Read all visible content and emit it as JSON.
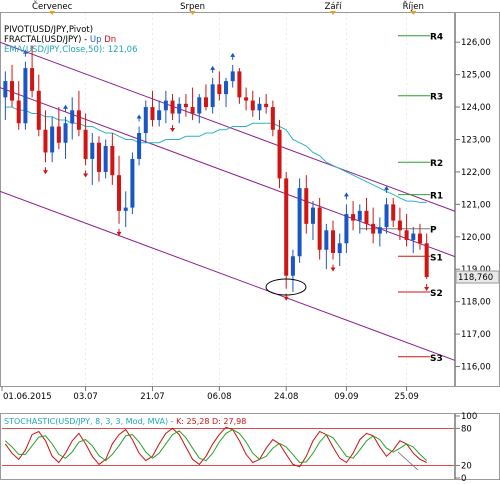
{
  "top_axis": {
    "months": [
      "Červenec",
      "Srpen",
      "Září",
      "Říjen"
    ]
  },
  "legend": [
    {
      "prefix": "PIVOT(USD/JPY,Pivot)",
      "suffix": "",
      "color": "#000000"
    },
    {
      "prefix": "FRACTAL(USD/JPY) - ",
      "suffix": "Up",
      "extra": "Dn",
      "color": "#000000",
      "up_color": "#1f5fc8",
      "dn_color": "#d01010"
    },
    {
      "prefix": "EMA(USD/JPY,Close,50): 121,06",
      "suffix": "",
      "color": "#20a8b8"
    }
  ],
  "colors": {
    "up_candle": "#1a56c4",
    "down_candle": "#d11414",
    "ema": "#2cb4c4",
    "channel": "#8e1f8e",
    "pivot_line": "#2e9e2e",
    "support_line": "#d01010",
    "stoch_k": "#d01010",
    "stoch_d": "#2aa02a",
    "stoch_band": "#d01010",
    "price_tag_bg": "#e8e8e8"
  },
  "chart_data": [
    {
      "type": "candlestick",
      "title": "USD/JPY",
      "ylim": [
        115.4,
        126.9
      ],
      "yticks": [
        "126,00",
        "125,00",
        "124,00",
        "123,00",
        "122,00",
        "121,00",
        "120,00",
        "119,00",
        "118,00",
        "117,00",
        "116,00"
      ],
      "ytick_values": [
        126,
        125,
        124,
        123,
        122,
        121,
        120,
        119,
        118,
        117,
        116
      ],
      "xticks": [
        "01.06.2015",
        "03.07",
        "21.07",
        "06.08",
        "24.08",
        "09.09",
        "25.09"
      ],
      "last_price_label": "118,760",
      "last_price": 118.76,
      "pivot_levels": [
        {
          "label": "R4",
          "value": 126.2
        },
        {
          "label": "R3",
          "value": 124.35
        },
        {
          "label": "R2",
          "value": 122.3
        },
        {
          "label": "R1",
          "value": 121.3
        },
        {
          "label": "P",
          "value": 120.25
        },
        {
          "label": "S1",
          "value": 119.4
        },
        {
          "label": "S2",
          "value": 118.3
        },
        {
          "label": "S3",
          "value": 116.3
        }
      ],
      "candles": [
        [
          124.3,
          125.1,
          123.6,
          124.8
        ],
        [
          124.8,
          125.3,
          124.0,
          124.2
        ],
        [
          124.2,
          124.8,
          123.3,
          123.5
        ],
        [
          123.5,
          125.4,
          123.3,
          125.2
        ],
        [
          125.2,
          125.9,
          124.3,
          124.5
        ],
        [
          124.5,
          125.0,
          123.1,
          123.3
        ],
        [
          123.3,
          123.9,
          122.3,
          122.6
        ],
        [
          122.6,
          123.7,
          122.3,
          123.4
        ],
        [
          123.4,
          124.0,
          122.7,
          122.9
        ],
        [
          122.9,
          123.7,
          122.4,
          123.5
        ],
        [
          123.5,
          124.3,
          123.0,
          123.9
        ],
        [
          123.9,
          124.5,
          123.1,
          123.3
        ],
        [
          123.3,
          123.8,
          122.2,
          122.4
        ],
        [
          122.4,
          123.2,
          121.6,
          122.9
        ],
        [
          122.9,
          123.1,
          121.7,
          122.0
        ],
        [
          122.0,
          123.0,
          121.8,
          122.8
        ],
        [
          122.8,
          123.2,
          121.6,
          121.9
        ],
        [
          121.9,
          122.5,
          120.4,
          120.8
        ],
        [
          120.8,
          121.4,
          120.3,
          120.9
        ],
        [
          120.9,
          122.6,
          120.7,
          122.4
        ],
        [
          122.4,
          123.4,
          122.2,
          123.2
        ],
        [
          123.2,
          124.2,
          122.9,
          124.0
        ],
        [
          124.0,
          124.5,
          123.4,
          123.6
        ],
        [
          123.6,
          124.2,
          123.4,
          123.9
        ],
        [
          123.9,
          124.5,
          123.5,
          124.2
        ],
        [
          124.2,
          124.4,
          123.6,
          123.8
        ],
        [
          123.8,
          124.3,
          123.5,
          124.1
        ],
        [
          124.1,
          124.4,
          123.7,
          124.0
        ],
        [
          124.0,
          124.6,
          123.6,
          123.8
        ],
        [
          123.8,
          124.4,
          123.5,
          124.3
        ],
        [
          124.3,
          124.7,
          123.9,
          124.0
        ],
        [
          124.0,
          124.9,
          123.8,
          124.7
        ],
        [
          124.7,
          125.1,
          124.2,
          124.4
        ],
        [
          124.4,
          124.9,
          124.0,
          124.8
        ],
        [
          124.8,
          125.3,
          124.6,
          125.1
        ],
        [
          125.1,
          125.2,
          124.1,
          124.3
        ],
        [
          124.3,
          124.6,
          123.9,
          124.2
        ],
        [
          124.2,
          124.5,
          123.7,
          123.9
        ],
        [
          123.9,
          124.3,
          123.6,
          124.1
        ],
        [
          124.1,
          124.4,
          123.8,
          124.0
        ],
        [
          124.0,
          124.2,
          123.1,
          123.3
        ],
        [
          123.3,
          123.6,
          121.5,
          121.8
        ],
        [
          121.8,
          122.0,
          118.4,
          118.8
        ],
        [
          118.8,
          119.6,
          118.3,
          119.4
        ],
        [
          119.4,
          121.8,
          119.2,
          121.5
        ],
        [
          121.5,
          121.9,
          120.1,
          120.4
        ],
        [
          120.4,
          121.1,
          119.9,
          120.9
        ],
        [
          120.9,
          121.2,
          119.3,
          119.6
        ],
        [
          119.6,
          120.4,
          119.0,
          120.2
        ],
        [
          120.2,
          120.5,
          119.3,
          119.5
        ],
        [
          119.5,
          120.1,
          119.1,
          119.8
        ],
        [
          119.8,
          121.0,
          119.5,
          120.7
        ],
        [
          120.7,
          121.1,
          120.2,
          120.5
        ],
        [
          120.5,
          121.0,
          120.1,
          120.8
        ],
        [
          120.8,
          121.2,
          120.2,
          120.4
        ],
        [
          120.4,
          120.9,
          119.8,
          120.1
        ],
        [
          120.1,
          120.6,
          119.7,
          120.3
        ],
        [
          120.3,
          121.2,
          120.1,
          121.0
        ],
        [
          121.0,
          121.2,
          120.3,
          120.5
        ],
        [
          120.5,
          120.9,
          119.9,
          120.2
        ],
        [
          120.2,
          120.7,
          119.7,
          119.9
        ],
        [
          119.9,
          120.3,
          119.5,
          120.1
        ],
        [
          120.1,
          120.4,
          119.6,
          119.8
        ],
        [
          119.8,
          120.1,
          118.7,
          118.76
        ]
      ],
      "fractals_up": [
        3,
        9,
        20,
        31,
        34,
        51,
        57
      ],
      "fractals_dn": [
        6,
        12,
        17,
        25,
        42,
        49,
        63
      ],
      "ema": [
        124.0,
        124.0,
        123.9,
        123.9,
        123.8,
        123.8,
        123.7,
        123.7,
        123.6,
        123.6,
        123.5,
        123.5,
        123.4,
        123.4,
        123.3,
        123.2,
        123.2,
        123.1,
        123.0,
        123.0,
        122.9,
        122.9,
        122.9,
        122.9,
        123.0,
        123.0,
        123.0,
        123.1,
        123.1,
        123.1,
        123.2,
        123.2,
        123.3,
        123.3,
        123.4,
        123.4,
        123.4,
        123.5,
        123.5,
        123.5,
        123.5,
        123.4,
        123.3,
        123.0,
        122.9,
        122.8,
        122.6,
        122.5,
        122.3,
        122.2,
        122.1,
        122.0,
        121.9,
        121.8,
        121.7,
        121.6,
        121.5,
        121.4,
        121.3,
        121.2,
        121.1,
        121.1,
        121.06,
        121.06
      ]
    },
    {
      "type": "line",
      "title": "STOCHASTIC(USD/JPY, 8, 3, 3, Mod, MVA)",
      "k_label": "K: 25,28",
      "d_label": "D: 27,98",
      "ylim": [
        0,
        100
      ],
      "yticks": [
        "100",
        "80",
        "20",
        "0"
      ],
      "ytick_values": [
        100,
        80,
        20,
        0
      ],
      "bands": [
        80,
        20
      ],
      "series": [
        {
          "name": "K",
          "values": [
            55,
            40,
            30,
            45,
            70,
            75,
            60,
            35,
            25,
            40,
            60,
            72,
            55,
            35,
            22,
            30,
            55,
            70,
            78,
            62,
            40,
            28,
            35,
            55,
            72,
            80,
            70,
            50,
            30,
            22,
            35,
            55,
            70,
            82,
            78,
            60,
            38,
            25,
            30,
            48,
            62,
            55,
            38,
            22,
            18,
            35,
            60,
            75,
            70,
            50,
            32,
            25,
            40,
            62,
            72,
            68,
            50,
            35,
            45,
            60,
            55,
            40,
            30,
            25
          ]
        },
        {
          "name": "D",
          "values": [
            60,
            50,
            38,
            38,
            52,
            66,
            68,
            55,
            38,
            32,
            42,
            58,
            62,
            52,
            36,
            28,
            38,
            52,
            68,
            70,
            58,
            42,
            32,
            40,
            55,
            70,
            76,
            65,
            48,
            32,
            28,
            40,
            58,
            72,
            78,
            72,
            58,
            40,
            30,
            35,
            48,
            56,
            50,
            38,
            25,
            26,
            40,
            58,
            70,
            65,
            50,
            35,
            32,
            45,
            60,
            68,
            62,
            48,
            42,
            48,
            55,
            50,
            38,
            28
          ]
        }
      ]
    }
  ]
}
